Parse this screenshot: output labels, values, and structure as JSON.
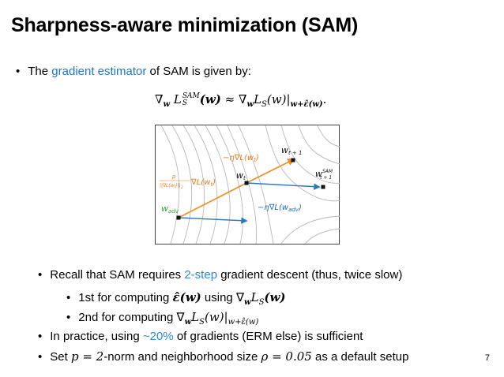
{
  "slide": {
    "title": "Sharpness-aware minimization (SAM)",
    "page_number": "7"
  },
  "intro": {
    "bullet": "•",
    "prefix": "The",
    "highlight": "gradient estimator",
    "suffix": "of SAM is given by:",
    "highlight_color": "#1f77c9"
  },
  "formula": {
    "lhs": "∇",
    "lhs_sub": "w",
    "loss": "L",
    "loss_sup": "SAM",
    "loss_sub": "S",
    "arg": "(w)",
    "approx": "≈",
    "rhs_nabla": "∇",
    "rhs_sub": "w",
    "rhs_loss": "L",
    "rhs_loss_sub": "S",
    "rhs_arg": "(w)|",
    "eval_point": "w+ε̂(w)",
    "end": "."
  },
  "figure": {
    "labels": {
      "w_t1": "w",
      "w_t1_sub": "t + 1",
      "w_t": "w",
      "w_t_sub": "t",
      "w_sam": "w",
      "w_sam_sup": "SAM",
      "w_sam_sub": "t + 1",
      "w_adv": "w",
      "w_adv_sub": "adv",
      "step_wt": "−η∇L(w",
      "step_wt_sub": "t",
      "step_wt_close": ")",
      "step_adv": "−η∇L(w",
      "step_adv_sub": "adv",
      "step_adv_close": ")",
      "ascent_num": "ρ",
      "ascent_den": "||∇L(w",
      "ascent_den_sub": "t",
      "ascent_den_close": ")||",
      "ascent_den_norm": "2",
      "ascent_grad": "∇L(w",
      "ascent_grad_sub": "t",
      "ascent_grad_close": ")"
    },
    "colors": {
      "ascent": "#f08a24",
      "descent": "#2b78c2",
      "contour": "#b8b8b8",
      "label_orange": "#e8791a",
      "label_green": "#3aa23a",
      "label_blue": "#1f6fb8"
    }
  },
  "bullets": [
    {
      "level": 1,
      "bullet": "•",
      "text_before": "Recall that SAM requires",
      "highlight": "2-step",
      "text_after": "gradient descent (thus, twice slow)"
    },
    {
      "level": 2,
      "bullet": "•",
      "text_before": "1st for computing",
      "math1": "ε̂(w)",
      "mid": "using",
      "math2_nabla": "∇",
      "math2_sub": "w",
      "math2_loss": "L",
      "math2_loss_sub": "S",
      "math2_arg": "(w)"
    },
    {
      "level": 2,
      "bullet": "•",
      "text_before": "2nd for computing",
      "math_nabla": "∇",
      "math_sub": "w",
      "math_loss": "L",
      "math_loss_sub": "S",
      "math_arg": "(w)|",
      "math_eval": "w+ε̂(w)"
    },
    {
      "level": 1,
      "bullet": "•",
      "text_before": "In practice, using",
      "highlight": "~20%",
      "text_after": "of gradients (ERM else) is sufficient"
    },
    {
      "level": 1,
      "bullet": "•",
      "text_before": "Set",
      "math1": "p = 2",
      "mid": "-norm and neighborhood size",
      "math2": "ρ = 0.05",
      "text_after": "as a default setup"
    }
  ]
}
